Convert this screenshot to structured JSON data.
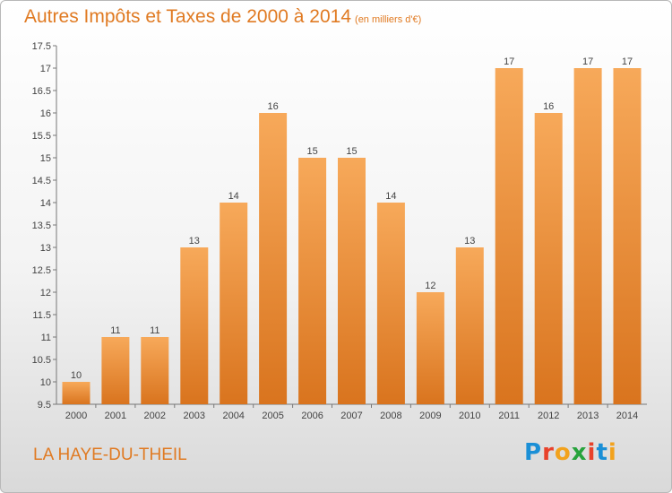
{
  "title": "Autres Impôts et Taxes de 2000 à 2014",
  "title_unit": "(en milliers d'€)",
  "commune": "LA HAYE-DU-THEIL",
  "brand": {
    "letters": [
      "P",
      "r",
      "o",
      "x",
      "i",
      "t",
      "i"
    ],
    "colors": [
      "#1a8fd6",
      "#e8422b",
      "#f2a21d",
      "#27a33c",
      "#e8422b",
      "#1a8fd6",
      "#f2a21d"
    ]
  },
  "chart_data": {
    "type": "bar",
    "title": "Autres Impôts et Taxes de 2000 à 2014",
    "subtitle": "(en milliers d'€)",
    "xlabel": "",
    "ylabel": "",
    "categories": [
      "2000",
      "2001",
      "2002",
      "2003",
      "2004",
      "2005",
      "2006",
      "2007",
      "2008",
      "2009",
      "2010",
      "2011",
      "2012",
      "2013",
      "2014"
    ],
    "values": [
      10,
      11,
      11,
      13,
      14,
      16,
      15,
      15,
      14,
      12,
      13,
      17,
      16,
      17,
      17
    ],
    "data_labels": [
      "10",
      "11",
      "11",
      "13",
      "14",
      "16",
      "15",
      "15",
      "14",
      "12",
      "13",
      "17",
      "16",
      "17",
      "17"
    ],
    "ylim": [
      9.5,
      17.5
    ],
    "yticks": [
      9.5,
      10,
      10.5,
      11,
      11.5,
      12,
      12.5,
      13,
      13.5,
      14,
      14.5,
      15,
      15.5,
      16,
      16.5,
      17,
      17.5
    ],
    "ytick_labels": [
      "9.5",
      "10",
      "10.5",
      "11",
      "11.5",
      "12",
      "12.5",
      "13",
      "13.5",
      "14",
      "14.5",
      "15",
      "15.5",
      "16",
      "16.5",
      "17",
      "17.5"
    ],
    "grid": false,
    "legend": "none",
    "bar_color_top": "#f7a95a",
    "bar_color_bottom": "#d9741e"
  }
}
